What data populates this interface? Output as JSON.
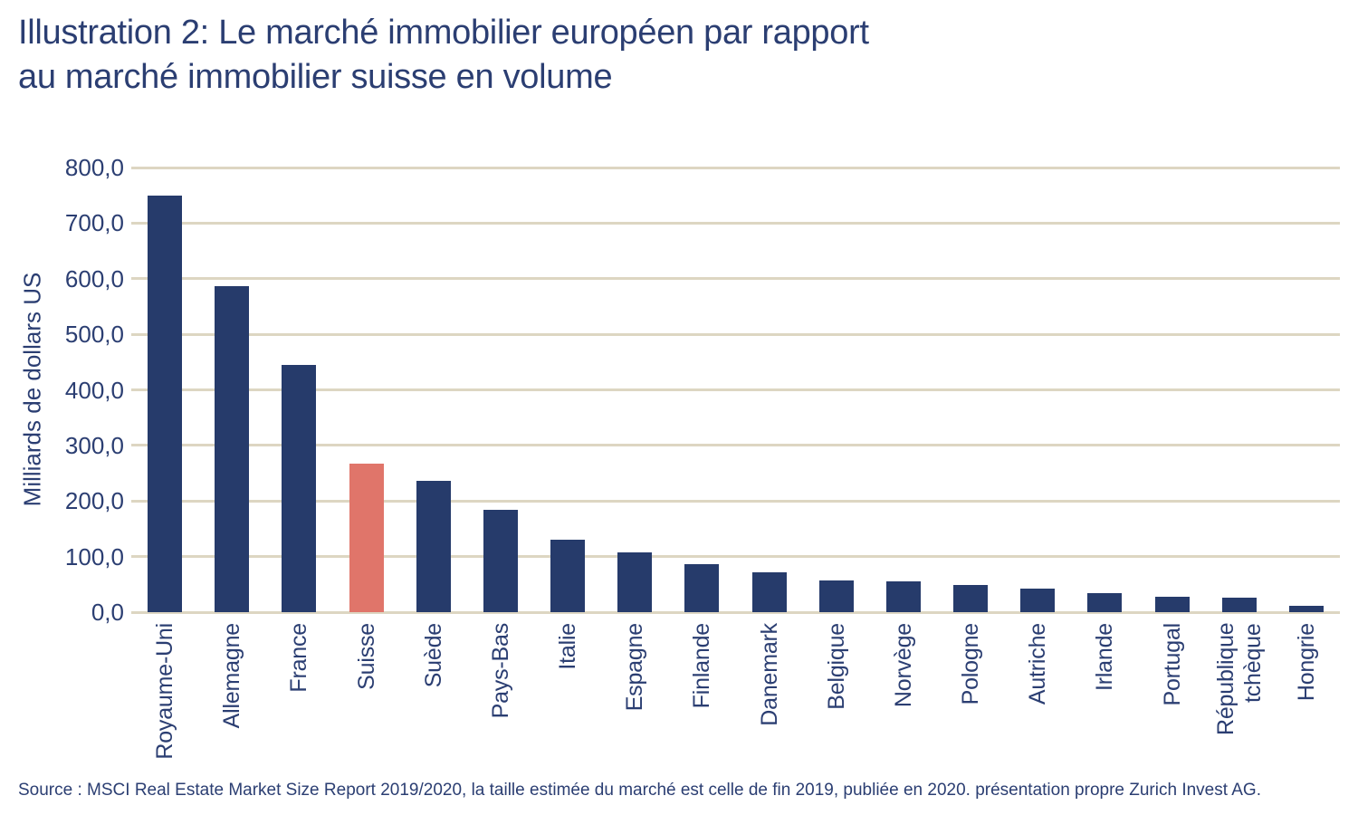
{
  "title": {
    "line1": "Illustration 2: Le marché immobilier européen par rapport",
    "line2": "au marché immobilier suisse en volume"
  },
  "source_note": "Source : MSCI Real Estate Market Size Report 2019/2020, la taille estimée du marché est celle de fin 2019, publiée en 2020. présentation propre Zurich Invest AG.",
  "chart_data": {
    "type": "bar",
    "title": "Illustration 2: Le marché immobilier européen par rapport au marché immobilier suisse en volume",
    "xlabel": "",
    "ylabel": "Milliards de dollars US",
    "ylim": [
      0,
      800
    ],
    "ytick_step": 100,
    "ytick_labels": [
      "0,0",
      "100,0",
      "200,0",
      "300,0",
      "400,0",
      "500,0",
      "600,0",
      "700,0",
      "800,0"
    ],
    "grid": true,
    "legend": false,
    "categories": [
      "Royaume-Uni",
      "Allemagne",
      "France",
      "Suisse",
      "Suède",
      "Pays-Bas",
      "Italie",
      "Espagne",
      "Finlande",
      "Danemark",
      "Belgique",
      "Norvège",
      "Pologne",
      "Autriche",
      "Irlande",
      "Portugal",
      "République tchèque",
      "Hongrie"
    ],
    "values": [
      750,
      586,
      445,
      268,
      236,
      184,
      131,
      108,
      87,
      71,
      57,
      56,
      49,
      42,
      34,
      27,
      26,
      12
    ],
    "highlight_index": 3,
    "bar_color": "#263b6b",
    "highlight_color": "#e0756a",
    "gridline_color": "#ddd6c2",
    "text_color": "#2b3e72"
  }
}
